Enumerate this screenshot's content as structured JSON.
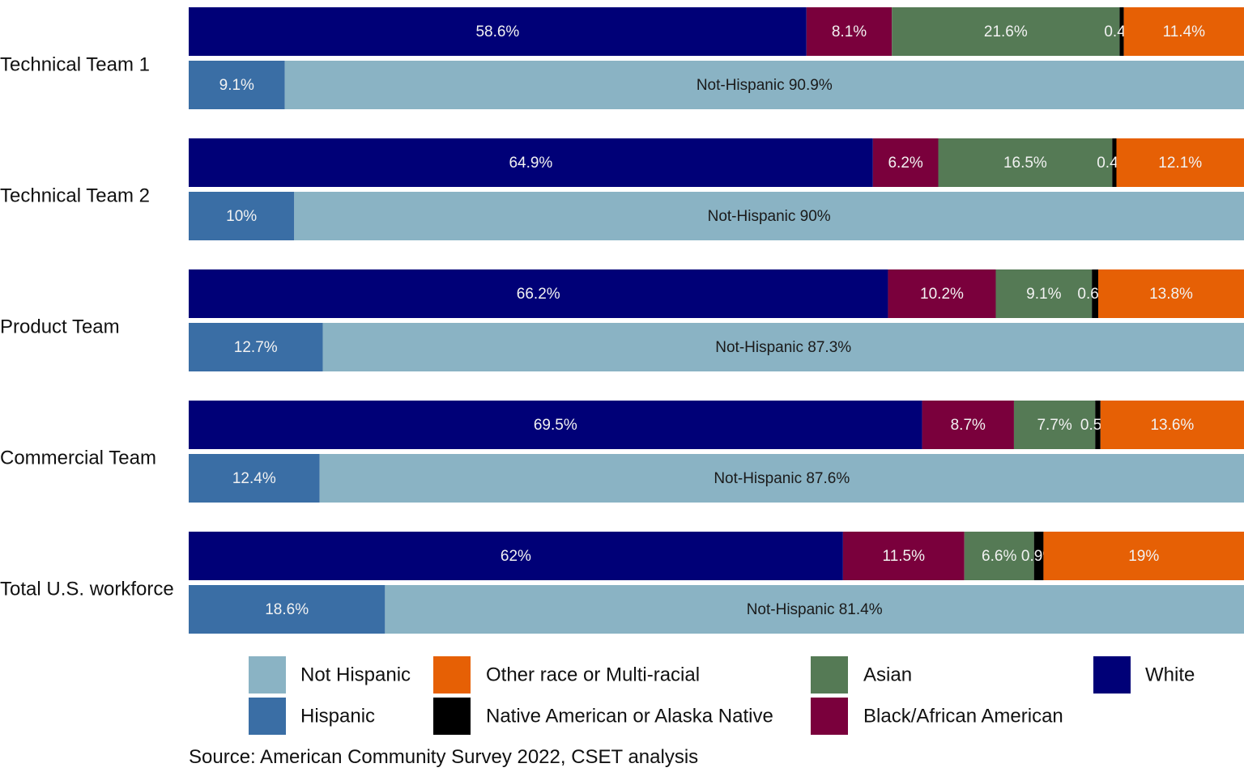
{
  "chart_data": {
    "type": "bar",
    "orientation": "horizontal",
    "stacked": "100%",
    "categories": [
      "Technical Team 1",
      "Technical Team 2",
      "Product Team",
      "Commercial Team",
      "Total U.S. workforce"
    ],
    "race_series": [
      {
        "name": "White",
        "color": "#000077",
        "values": [
          58.6,
          64.9,
          66.2,
          69.5,
          62
        ],
        "labels": [
          "58.6%",
          "64.9%",
          "66.2%",
          "69.5%",
          "62%"
        ]
      },
      {
        "name": "Black/African American",
        "color": "#7a003c",
        "values": [
          8.1,
          6.2,
          10.2,
          8.7,
          11.5
        ],
        "labels": [
          "8.1%",
          "6.2%",
          "10.2%",
          "8.7%",
          "11.5%"
        ]
      },
      {
        "name": "Asian",
        "color": "#557a55",
        "values": [
          21.6,
          16.5,
          9.1,
          7.7,
          6.6
        ],
        "labels": [
          "21.6%",
          "16.5%",
          "9.1%",
          "7.7%",
          "6.6%"
        ]
      },
      {
        "name": "Native American or Alaska Native",
        "color": "#000000",
        "values": [
          0.4,
          0.4,
          0.6,
          0.5,
          0.9
        ],
        "labels": [
          "0.4%",
          "0.4%",
          "0.6%",
          "0.5%",
          "0.9%"
        ]
      },
      {
        "name": "Other race or Multi-racial",
        "color": "#e66005",
        "values": [
          11.4,
          12.1,
          13.8,
          13.6,
          19
        ],
        "labels": [
          "11.4%",
          "12.1%",
          "13.8%",
          "13.6%",
          "19%"
        ]
      }
    ],
    "ethnicity_series": [
      {
        "name": "Hispanic",
        "color": "#3a6ea5",
        "values": [
          9.1,
          10,
          12.7,
          12.4,
          18.6
        ],
        "labels": [
          "9.1%",
          "10%",
          "12.7%",
          "12.4%",
          "18.6%"
        ]
      },
      {
        "name": "Not Hispanic",
        "color": "#8ab3c4",
        "values": [
          90.9,
          90,
          87.3,
          87.6,
          81.4
        ],
        "labels": [
          "Not-Hispanic  90.9%",
          "Not-Hispanic  90%",
          "Not-Hispanic  87.3%",
          "Not-Hispanic  87.6%",
          "Not-Hispanic  81.4%"
        ]
      }
    ],
    "legend": {
      "placement": "bottom",
      "items": [
        {
          "label": "Not Hispanic",
          "color": "#8ab3c4"
        },
        {
          "label": "Hispanic",
          "color": "#3a6ea5"
        },
        {
          "label": "Other race or Multi-racial",
          "color": "#e66005"
        },
        {
          "label": "Native American or Alaska Native",
          "color": "#000000"
        },
        {
          "label": "Asian",
          "color": "#557a55"
        },
        {
          "label": "Black/African American",
          "color": "#7a003c"
        },
        {
          "label": "White",
          "color": "#000077"
        }
      ]
    },
    "caption": "Source: American Community Survey 2022, CSET analysis",
    "grid": false
  }
}
